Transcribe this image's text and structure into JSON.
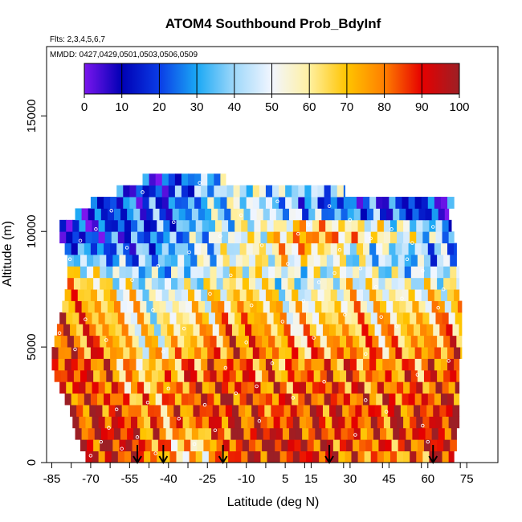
{
  "chart_data": {
    "type": "heatmap",
    "title": "ATOM4 Southbound Prob_BdyInf",
    "notes": [
      "Flts: 2,3,4,5,6,7",
      "MMDD: 0427,0429,0501,0503,0506,0509"
    ],
    "xlabel": "Latitude (deg N)",
    "ylabel": "Altitude (m)",
    "xlim": [
      -87,
      87
    ],
    "ylim": [
      0,
      18000
    ],
    "x_ticks": [
      -85,
      -70,
      -55,
      -40,
      -25,
      -10,
      5,
      15,
      30,
      45,
      60,
      75
    ],
    "x_tick_labels": [
      "-85",
      "-70",
      "-55",
      "-40",
      "-25",
      "-10",
      "5",
      "15",
      "30",
      "45",
      "60",
      "75"
    ],
    "y_ticks": [
      0,
      5000,
      10000,
      15000
    ],
    "y_tick_labels": [
      "0",
      "5000",
      "10000",
      "15000"
    ],
    "colorbar": {
      "range": [
        0,
        100
      ],
      "ticks": [
        0,
        10,
        20,
        30,
        40,
        50,
        60,
        70,
        80,
        90,
        100
      ],
      "tick_labels": [
        "0",
        "10",
        "20",
        "30",
        "40",
        "50",
        "60",
        "70",
        "80",
        "90",
        "100"
      ],
      "colors": [
        "#7b16ee",
        "#0000b4",
        "#0a3ce6",
        "#1aa8f5",
        "#9fd8fa",
        "#f2f6ff",
        "#fff0a0",
        "#ffc400",
        "#ff7f00",
        "#e60000",
        "#9c1f25"
      ]
    },
    "cell_height_m": 500,
    "extents": [
      {
        "alt": 0,
        "lat_min": -72,
        "lat_max": 70
      },
      {
        "alt": 500,
        "lat_min": -74,
        "lat_max": 71
      },
      {
        "alt": 1000,
        "lat_min": -76,
        "lat_max": 71
      },
      {
        "alt": 1500,
        "lat_min": -77,
        "lat_max": 72
      },
      {
        "alt": 2000,
        "lat_min": -78,
        "lat_max": 72
      },
      {
        "alt": 2500,
        "lat_min": -80,
        "lat_max": 72
      },
      {
        "alt": 3000,
        "lat_min": -82,
        "lat_max": 72
      },
      {
        "alt": 3500,
        "lat_min": -84,
        "lat_max": 72
      },
      {
        "alt": 4000,
        "lat_min": -85,
        "lat_max": 72
      },
      {
        "alt": 4500,
        "lat_min": -85,
        "lat_max": 73
      },
      {
        "alt": 5000,
        "lat_min": -84,
        "lat_max": 73
      },
      {
        "alt": 5500,
        "lat_min": -83,
        "lat_max": 73
      },
      {
        "alt": 6000,
        "lat_min": -82,
        "lat_max": 73
      },
      {
        "alt": 6500,
        "lat_min": -81,
        "lat_max": 73
      },
      {
        "alt": 7000,
        "lat_min": -80,
        "lat_max": 72
      },
      {
        "alt": 7500,
        "lat_min": -79,
        "lat_max": 72
      },
      {
        "alt": 8000,
        "lat_min": -79,
        "lat_max": 72
      },
      {
        "alt": 8500,
        "lat_min": -79,
        "lat_max": 71
      },
      {
        "alt": 9000,
        "lat_min": -80,
        "lat_max": 71
      },
      {
        "alt": 9500,
        "lat_min": -82,
        "lat_max": 70
      },
      {
        "alt": 10000,
        "lat_min": -82,
        "lat_max": 69
      },
      {
        "alt": 10500,
        "lat_min": -76,
        "lat_max": 68
      },
      {
        "alt": 11000,
        "lat_min": -70,
        "lat_max": 70
      },
      {
        "alt": 11500,
        "lat_min": -60,
        "lat_max": 28
      },
      {
        "alt": 12000,
        "lat_min": -50,
        "lat_max": -18
      }
    ],
    "profiles": [
      {
        "alt": 0,
        "stops": [
          [
            -72,
            88
          ],
          [
            -55,
            95
          ],
          [
            -45,
            75
          ],
          [
            -30,
            60
          ],
          [
            -15,
            85
          ],
          [
            0,
            95
          ],
          [
            20,
            90
          ],
          [
            35,
            80
          ],
          [
            50,
            70
          ],
          [
            70,
            92
          ]
        ]
      },
      {
        "alt": 1000,
        "stops": [
          [
            -76,
            92
          ],
          [
            -60,
            95
          ],
          [
            -45,
            80
          ],
          [
            -30,
            62
          ],
          [
            -15,
            90
          ],
          [
            0,
            96
          ],
          [
            20,
            88
          ],
          [
            35,
            82
          ],
          [
            55,
            90
          ],
          [
            71,
            95
          ]
        ]
      },
      {
        "alt": 2000,
        "stops": [
          [
            -78,
            90
          ],
          [
            -60,
            88
          ],
          [
            -45,
            75
          ],
          [
            -30,
            85
          ],
          [
            -15,
            92
          ],
          [
            0,
            80
          ],
          [
            15,
            90
          ],
          [
            35,
            85
          ],
          [
            55,
            88
          ],
          [
            72,
            92
          ]
        ]
      },
      {
        "alt": 3000,
        "stops": [
          [
            -82,
            88
          ],
          [
            -65,
            85
          ],
          [
            -50,
            70
          ],
          [
            -35,
            80
          ],
          [
            -20,
            90
          ],
          [
            0,
            82
          ],
          [
            20,
            88
          ],
          [
            40,
            80
          ],
          [
            60,
            85
          ],
          [
            72,
            90
          ]
        ]
      },
      {
        "alt": 4000,
        "stops": [
          [
            -85,
            92
          ],
          [
            -65,
            82
          ],
          [
            -50,
            65
          ],
          [
            -35,
            78
          ],
          [
            -20,
            85
          ],
          [
            0,
            75
          ],
          [
            20,
            82
          ],
          [
            40,
            78
          ],
          [
            60,
            80
          ],
          [
            72,
            88
          ]
        ]
      },
      {
        "alt": 5000,
        "stops": [
          [
            -84,
            88
          ],
          [
            -65,
            80
          ],
          [
            -50,
            60
          ],
          [
            -30,
            72
          ],
          [
            -10,
            85
          ],
          [
            10,
            70
          ],
          [
            30,
            78
          ],
          [
            50,
            72
          ],
          [
            73,
            80
          ]
        ]
      },
      {
        "alt": 6000,
        "stops": [
          [
            -82,
            85
          ],
          [
            -65,
            72
          ],
          [
            -45,
            55
          ],
          [
            -30,
            65
          ],
          [
            -10,
            78
          ],
          [
            10,
            62
          ],
          [
            30,
            70
          ],
          [
            50,
            68
          ],
          [
            73,
            75
          ]
        ]
      },
      {
        "alt": 7000,
        "stops": [
          [
            -80,
            80
          ],
          [
            -60,
            65
          ],
          [
            -45,
            50
          ],
          [
            -30,
            58
          ],
          [
            -10,
            70
          ],
          [
            10,
            55
          ],
          [
            30,
            62
          ],
          [
            50,
            60
          ],
          [
            72,
            65
          ]
        ]
      },
      {
        "alt": 8000,
        "stops": [
          [
            -79,
            70
          ],
          [
            -60,
            50
          ],
          [
            -45,
            38
          ],
          [
            -30,
            45
          ],
          [
            -10,
            60
          ],
          [
            10,
            40
          ],
          [
            30,
            55
          ],
          [
            50,
            45
          ],
          [
            72,
            52
          ]
        ]
      },
      {
        "alt": 9000,
        "stops": [
          [
            -80,
            35
          ],
          [
            -60,
            25
          ],
          [
            -45,
            30
          ],
          [
            -30,
            40
          ],
          [
            -10,
            55
          ],
          [
            10,
            65
          ],
          [
            30,
            45
          ],
          [
            50,
            35
          ],
          [
            71,
            30
          ]
        ]
      },
      {
        "alt": 10000,
        "stops": [
          [
            -82,
            5
          ],
          [
            -70,
            12
          ],
          [
            -55,
            20
          ],
          [
            -40,
            28
          ],
          [
            -20,
            45
          ],
          [
            0,
            60
          ],
          [
            15,
            85
          ],
          [
            35,
            70
          ],
          [
            55,
            55
          ],
          [
            69,
            35
          ]
        ]
      },
      {
        "alt": 11000,
        "stops": [
          [
            -70,
            15
          ],
          [
            -55,
            25
          ],
          [
            -40,
            20
          ],
          [
            -25,
            35
          ],
          [
            -10,
            50
          ],
          [
            5,
            30
          ],
          [
            20,
            15
          ],
          [
            45,
            10
          ],
          [
            70,
            3
          ]
        ]
      },
      {
        "alt": 12000,
        "stops": [
          [
            -50,
            12
          ],
          [
            -40,
            15
          ],
          [
            -30,
            30
          ],
          [
            -18,
            45
          ]
        ]
      }
    ],
    "arrow_markers_lat": [
      -52,
      -42,
      -19,
      22,
      62
    ],
    "point_samples": [
      [
        -70,
        300
      ],
      [
        -66,
        900
      ],
      [
        -63,
        1500
      ],
      [
        -60,
        2300
      ],
      [
        -58,
        600
      ],
      [
        -52,
        1100
      ],
      [
        -48,
        2600
      ],
      [
        -45,
        400
      ],
      [
        -40,
        3200
      ],
      [
        -36,
        1900
      ],
      [
        -30,
        800
      ],
      [
        -26,
        2500
      ],
      [
        -22,
        1400
      ],
      [
        -18,
        4100
      ],
      [
        -14,
        3000
      ],
      [
        -10,
        5200
      ],
      [
        -5,
        1800
      ],
      [
        0,
        4300
      ],
      [
        4,
        6100
      ],
      [
        8,
        2800
      ],
      [
        12,
        7000
      ],
      [
        16,
        5400
      ],
      [
        20,
        3500
      ],
      [
        24,
        8200
      ],
      [
        28,
        6400
      ],
      [
        32,
        1200
      ],
      [
        36,
        4700
      ],
      [
        40,
        7600
      ],
      [
        44,
        2200
      ],
      [
        48,
        5900
      ],
      [
        52,
        8800
      ],
      [
        56,
        3800
      ],
      [
        60,
        900
      ],
      [
        64,
        6700
      ],
      [
        68,
        4400
      ],
      [
        70,
        10600
      ],
      [
        -78,
        8800
      ],
      [
        -74,
        9600
      ],
      [
        -68,
        10100
      ],
      [
        -62,
        10900
      ],
      [
        -56,
        9300
      ],
      [
        -50,
        11700
      ],
      [
        -44,
        8500
      ],
      [
        -38,
        10400
      ],
      [
        -32,
        9100
      ],
      [
        -28,
        12100
      ],
      [
        -24,
        7300
      ],
      [
        -20,
        9800
      ],
      [
        -16,
        8100
      ],
      [
        -12,
        10700
      ],
      [
        -8,
        6800
      ],
      [
        -4,
        9400
      ],
      [
        2,
        11300
      ],
      [
        6,
        8600
      ],
      [
        10,
        9900
      ],
      [
        14,
        10300
      ],
      [
        18,
        7800
      ],
      [
        22,
        11100
      ],
      [
        26,
        9200
      ],
      [
        30,
        10500
      ],
      [
        34,
        8400
      ],
      [
        38,
        9700
      ],
      [
        42,
        6300
      ],
      [
        46,
        10100
      ],
      [
        50,
        7100
      ],
      [
        54,
        9500
      ],
      [
        58,
        8300
      ],
      [
        62,
        10200
      ],
      [
        66,
        7500
      ],
      [
        -82,
        5600
      ],
      [
        -76,
        4900
      ],
      [
        -72,
        6200
      ],
      [
        -64,
        5300
      ],
      [
        -54,
        7900
      ],
      [
        -46,
        6600
      ],
      [
        -42,
        4800
      ],
      [
        -34,
        5800
      ],
      [
        -6,
        3300
      ],
      [
        36,
        2700
      ],
      [
        58,
        1600
      ]
    ]
  }
}
